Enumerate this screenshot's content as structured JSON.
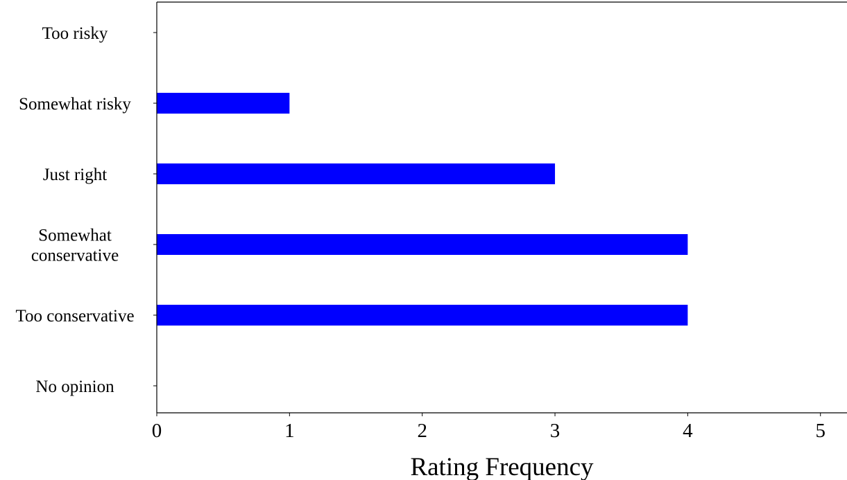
{
  "chart_data": {
    "type": "bar",
    "orientation": "horizontal",
    "title": "",
    "xlabel": "Rating Frequency",
    "ylabel": "",
    "categories": [
      "Too risky",
      "Somewhat risky",
      "Just right",
      "Somewhat\nconservative",
      "Too conservative",
      "No opinion"
    ],
    "values": [
      0,
      1,
      3,
      4,
      4,
      0
    ],
    "xlim": [
      0,
      5.2
    ],
    "xticks": [
      0,
      1,
      2,
      3,
      4,
      5
    ],
    "grid": false,
    "legend": "none",
    "bar_color": "#0000ff"
  }
}
